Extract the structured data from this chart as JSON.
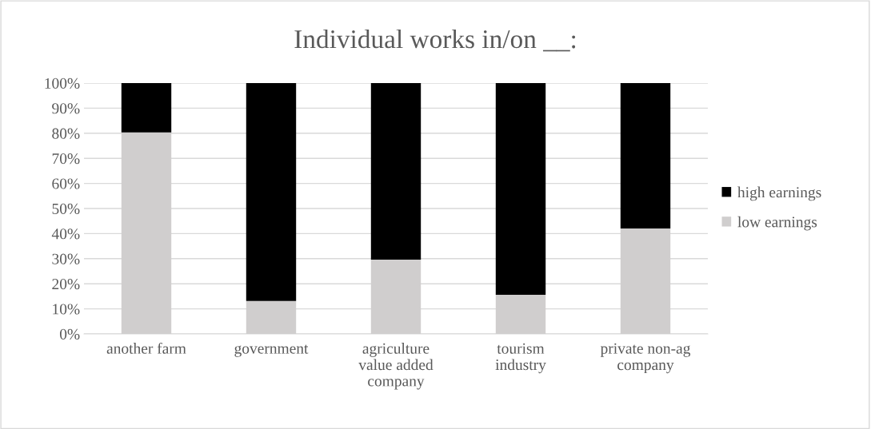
{
  "chart_data": {
    "type": "bar",
    "title": "Individual works in/on __:",
    "categories": [
      "another farm",
      "government",
      "agriculture\nvalue added\ncompany",
      "tourism\nindustry",
      "private non-ag\ncompany"
    ],
    "series": [
      {
        "name": "low earnings",
        "color": "#d0cece",
        "values": [
          80.3,
          13.1,
          29.6,
          15.6,
          42.0
        ]
      },
      {
        "name": "high earnings",
        "color": "#000000",
        "values": [
          19.7,
          86.9,
          70.4,
          84.4,
          58.0
        ]
      }
    ],
    "stacked": true,
    "ylim": [
      0,
      100
    ],
    "yticks": [
      {
        "value": 0,
        "label": "0%"
      },
      {
        "value": 10,
        "label": "10%"
      },
      {
        "value": 20,
        "label": "20%"
      },
      {
        "value": 30,
        "label": "30%"
      },
      {
        "value": 40,
        "label": "40%"
      },
      {
        "value": 50,
        "label": "50%"
      },
      {
        "value": 60,
        "label": "60%"
      },
      {
        "value": 70,
        "label": "70%"
      },
      {
        "value": 80,
        "label": "80%"
      },
      {
        "value": 90,
        "label": "90%"
      },
      {
        "value": 100,
        "label": "100%"
      }
    ],
    "grid": "y",
    "legend": "right"
  }
}
